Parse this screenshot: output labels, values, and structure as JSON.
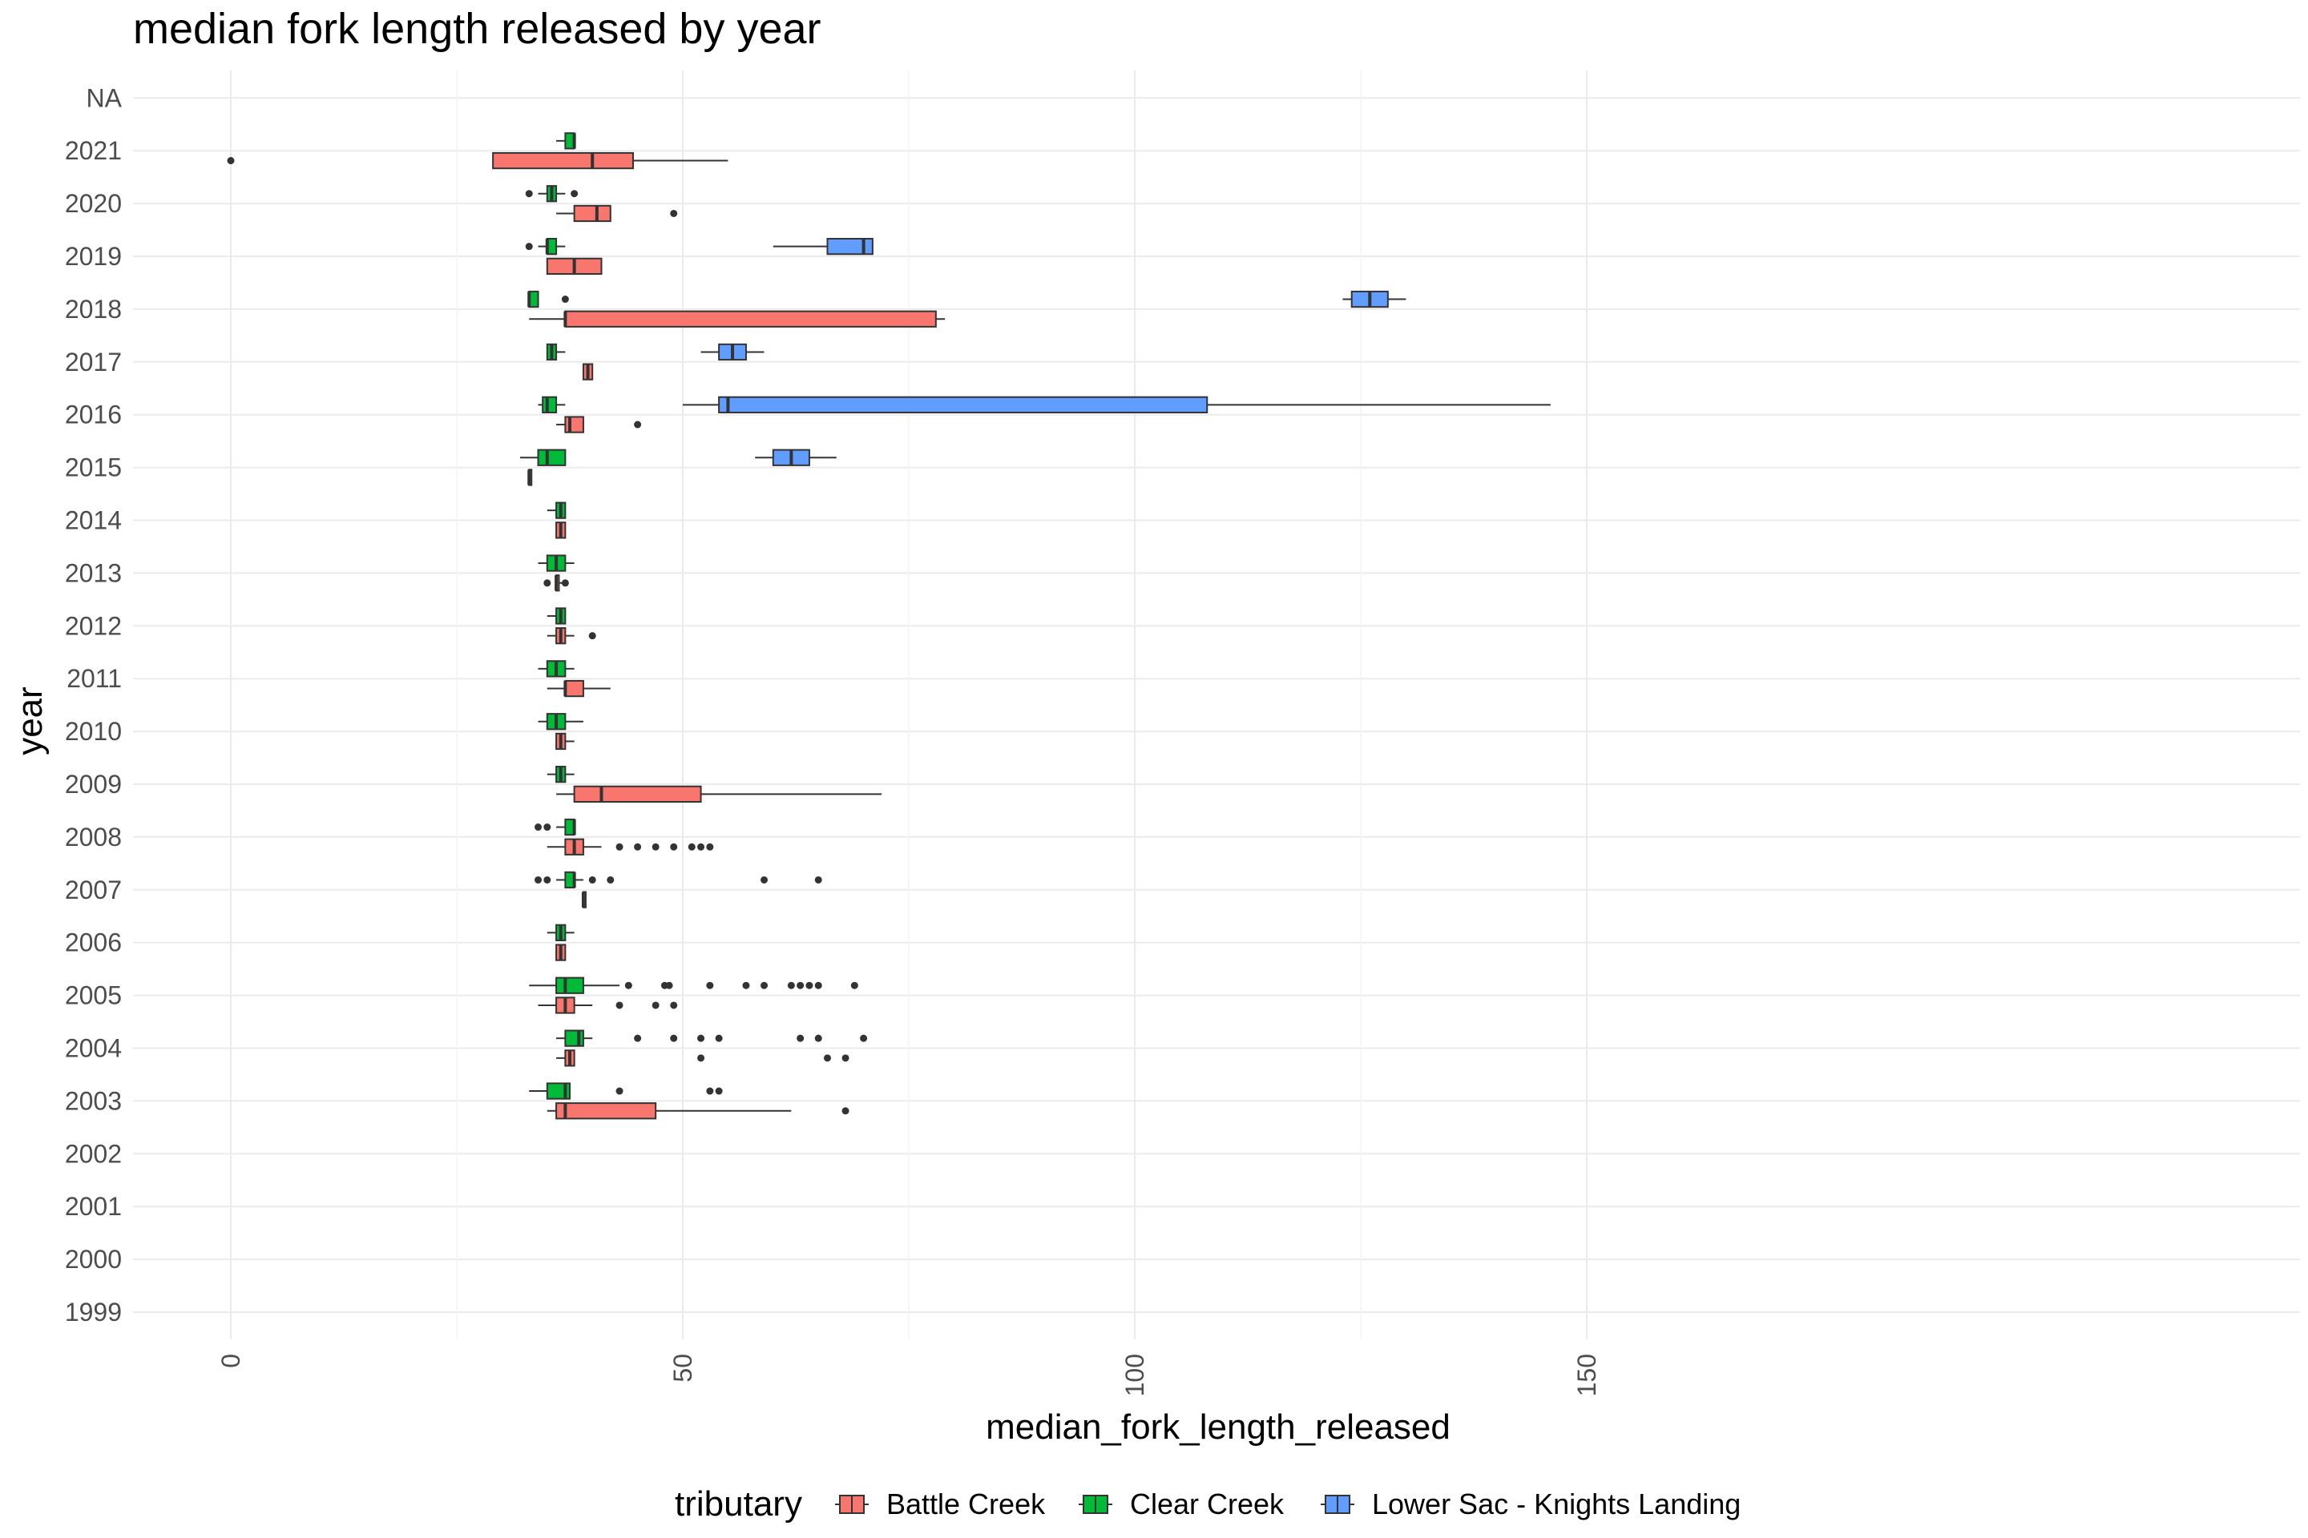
{
  "chart_data": {
    "type": "boxplot",
    "orientation": "horizontal",
    "title": "median fork length released by year",
    "xlabel": "median_fork_length_released",
    "ylabel": "year",
    "xlim": [
      -7,
      153
    ],
    "x_ticks": [
      0,
      50,
      100,
      150
    ],
    "x_tick_labels": [
      "0",
      "50",
      "100",
      "150"
    ],
    "categories": [
      "1999",
      "2000",
      "2001",
      "2002",
      "2003",
      "2004",
      "2005",
      "2006",
      "2007",
      "2008",
      "2009",
      "2010",
      "2011",
      "2012",
      "2013",
      "2014",
      "2015",
      "2016",
      "2017",
      "2018",
      "2019",
      "2020",
      "2021",
      "NA"
    ],
    "grid": true,
    "legend": {
      "title": "tributary",
      "position": "bottom",
      "entries": [
        "Battle Creek",
        "Clear Creek",
        "Lower Sac - Knights Landing"
      ]
    },
    "series": [
      {
        "name": "Battle Creek",
        "color": "#F8766D",
        "boxes": [
          {
            "year": "2003",
            "whisker_low": 35,
            "q1": 36,
            "median": 37,
            "q3": 47,
            "whisker_high": 62,
            "outliers": [
              68
            ]
          },
          {
            "year": "2004",
            "whisker_low": 36,
            "q1": 37,
            "median": 37.5,
            "q3": 38,
            "whisker_high": 38,
            "outliers": [
              52,
              66,
              68
            ]
          },
          {
            "year": "2005",
            "whisker_low": 34,
            "q1": 36,
            "median": 37,
            "q3": 38,
            "whisker_high": 40,
            "outliers": [
              43,
              47,
              49
            ]
          },
          {
            "year": "2006",
            "whisker_low": 36,
            "q1": 36,
            "median": 36.5,
            "q3": 37,
            "whisker_high": 37,
            "outliers": []
          },
          {
            "year": "2007",
            "whisker_low": 39,
            "q1": 39,
            "median": 39,
            "q3": 39,
            "whisker_high": 39,
            "outliers": []
          },
          {
            "year": "2008",
            "whisker_low": 35,
            "q1": 37,
            "median": 38,
            "q3": 39,
            "whisker_high": 41,
            "outliers": [
              43,
              45,
              47,
              49,
              51,
              52,
              53
            ]
          },
          {
            "year": "2009",
            "whisker_low": 36,
            "q1": 38,
            "median": 41,
            "q3": 52,
            "whisker_high": 72,
            "outliers": []
          },
          {
            "year": "2010",
            "whisker_low": 36,
            "q1": 36,
            "median": 36.5,
            "q3": 37,
            "whisker_high": 38,
            "outliers": []
          },
          {
            "year": "2011",
            "whisker_low": 35,
            "q1": 37,
            "median": 37,
            "q3": 39,
            "whisker_high": 42,
            "outliers": []
          },
          {
            "year": "2012",
            "whisker_low": 35,
            "q1": 36,
            "median": 36.5,
            "q3": 37,
            "whisker_high": 38,
            "outliers": [
              40
            ]
          },
          {
            "year": "2013",
            "whisker_low": 36,
            "q1": 36,
            "median": 36,
            "q3": 36.3,
            "whisker_high": 37,
            "outliers": [
              35,
              37
            ]
          },
          {
            "year": "2014",
            "whisker_low": 36,
            "q1": 36,
            "median": 36.5,
            "q3": 37,
            "whisker_high": 37,
            "outliers": []
          },
          {
            "year": "2015",
            "whisker_low": 33,
            "q1": 33,
            "median": 33,
            "q3": 33,
            "whisker_high": 33,
            "outliers": []
          },
          {
            "year": "2016",
            "whisker_low": 36,
            "q1": 37,
            "median": 37.5,
            "q3": 39,
            "whisker_high": 39,
            "outliers": [
              45
            ]
          },
          {
            "year": "2017",
            "whisker_low": 39,
            "q1": 39,
            "median": 39.5,
            "q3": 40,
            "whisker_high": 40,
            "outliers": []
          },
          {
            "year": "2018",
            "whisker_low": 33,
            "q1": 37,
            "median": 37,
            "q3": 78,
            "whisker_high": 79,
            "outliers": []
          },
          {
            "year": "2019",
            "whisker_low": 35,
            "q1": 35,
            "median": 38,
            "q3": 41,
            "whisker_high": 41,
            "outliers": []
          },
          {
            "year": "2020",
            "whisker_low": 36,
            "q1": 38,
            "median": 40.5,
            "q3": 42,
            "whisker_high": 42,
            "outliers": [
              49
            ]
          },
          {
            "year": "2021",
            "whisker_low": 29,
            "q1": 29,
            "median": 40,
            "q3": 44.5,
            "whisker_high": 55,
            "outliers": [
              0
            ]
          }
        ]
      },
      {
        "name": "Clear Creek",
        "color": "#00BA38",
        "boxes": [
          {
            "year": "2003",
            "whisker_low": 33,
            "q1": 35,
            "median": 37,
            "q3": 37.5,
            "whisker_high": 37.5,
            "outliers": [
              43,
              53,
              54
            ]
          },
          {
            "year": "2004",
            "whisker_low": 36,
            "q1": 37,
            "median": 38.5,
            "q3": 39,
            "whisker_high": 40,
            "outliers": [
              45,
              49,
              52,
              54,
              63,
              65,
              70
            ]
          },
          {
            "year": "2005",
            "whisker_low": 33,
            "q1": 36,
            "median": 37,
            "q3": 39,
            "whisker_high": 43,
            "outliers": [
              44,
              48,
              48.5,
              53,
              57,
              59,
              62,
              63,
              64,
              65,
              69
            ]
          },
          {
            "year": "2006",
            "whisker_low": 35,
            "q1": 36,
            "median": 36.5,
            "q3": 37,
            "whisker_high": 38,
            "outliers": []
          },
          {
            "year": "2007",
            "whisker_low": 36,
            "q1": 37,
            "median": 38,
            "q3": 38,
            "whisker_high": 39,
            "outliers": [
              34,
              35,
              40,
              42,
              59,
              65
            ]
          },
          {
            "year": "2008",
            "whisker_low": 36,
            "q1": 37,
            "median": 38,
            "q3": 38,
            "whisker_high": 38,
            "outliers": [
              34,
              35
            ]
          },
          {
            "year": "2009",
            "whisker_low": 35,
            "q1": 36,
            "median": 36.5,
            "q3": 37,
            "whisker_high": 38,
            "outliers": []
          },
          {
            "year": "2010",
            "whisker_low": 34,
            "q1": 35,
            "median": 36,
            "q3": 37,
            "whisker_high": 39,
            "outliers": []
          },
          {
            "year": "2011",
            "whisker_low": 34,
            "q1": 35,
            "median": 36,
            "q3": 37,
            "whisker_high": 38,
            "outliers": []
          },
          {
            "year": "2012",
            "whisker_low": 35,
            "q1": 36,
            "median": 36.5,
            "q3": 37,
            "whisker_high": 37,
            "outliers": []
          },
          {
            "year": "2013",
            "whisker_low": 34,
            "q1": 35,
            "median": 36,
            "q3": 37,
            "whisker_high": 38,
            "outliers": []
          },
          {
            "year": "2014",
            "whisker_low": 35,
            "q1": 36,
            "median": 36.5,
            "q3": 37,
            "whisker_high": 37,
            "outliers": []
          },
          {
            "year": "2015",
            "whisker_low": 32,
            "q1": 34,
            "median": 35,
            "q3": 37,
            "whisker_high": 37,
            "outliers": []
          },
          {
            "year": "2016",
            "whisker_low": 34,
            "q1": 34.5,
            "median": 35,
            "q3": 36,
            "whisker_high": 37,
            "outliers": []
          },
          {
            "year": "2017",
            "whisker_low": 35,
            "q1": 35,
            "median": 35.5,
            "q3": 36,
            "whisker_high": 37,
            "outliers": []
          },
          {
            "year": "2018",
            "whisker_low": 33,
            "q1": 33,
            "median": 33,
            "q3": 34,
            "whisker_high": 34,
            "outliers": [
              37
            ]
          },
          {
            "year": "2019",
            "whisker_low": 34,
            "q1": 35,
            "median": 35,
            "q3": 36,
            "whisker_high": 37,
            "outliers": [
              33
            ]
          },
          {
            "year": "2020",
            "whisker_low": 34,
            "q1": 35,
            "median": 35.5,
            "q3": 36,
            "whisker_high": 37,
            "outliers": [
              33,
              38
            ]
          },
          {
            "year": "2021",
            "whisker_low": 36,
            "q1": 37,
            "median": 38,
            "q3": 38,
            "whisker_high": 38,
            "outliers": []
          }
        ]
      },
      {
        "name": "Lower Sac - Knights Landing",
        "color": "#619CFF",
        "boxes": [
          {
            "year": "2015",
            "whisker_low": 58,
            "q1": 60,
            "median": 62,
            "q3": 64,
            "whisker_high": 67,
            "outliers": []
          },
          {
            "year": "2016",
            "whisker_low": 50,
            "q1": 54,
            "median": 55,
            "q3": 108,
            "whisker_high": 146,
            "outliers": []
          },
          {
            "year": "2017",
            "whisker_low": 52,
            "q1": 54,
            "median": 55.5,
            "q3": 57,
            "whisker_high": 59,
            "outliers": []
          },
          {
            "year": "2018",
            "whisker_low": 123,
            "q1": 124,
            "median": 126,
            "q3": 128,
            "whisker_high": 130,
            "outliers": []
          },
          {
            "year": "2019",
            "whisker_low": 60,
            "q1": 66,
            "median": 70,
            "q3": 71,
            "whisker_high": 71,
            "outliers": []
          }
        ]
      }
    ]
  }
}
